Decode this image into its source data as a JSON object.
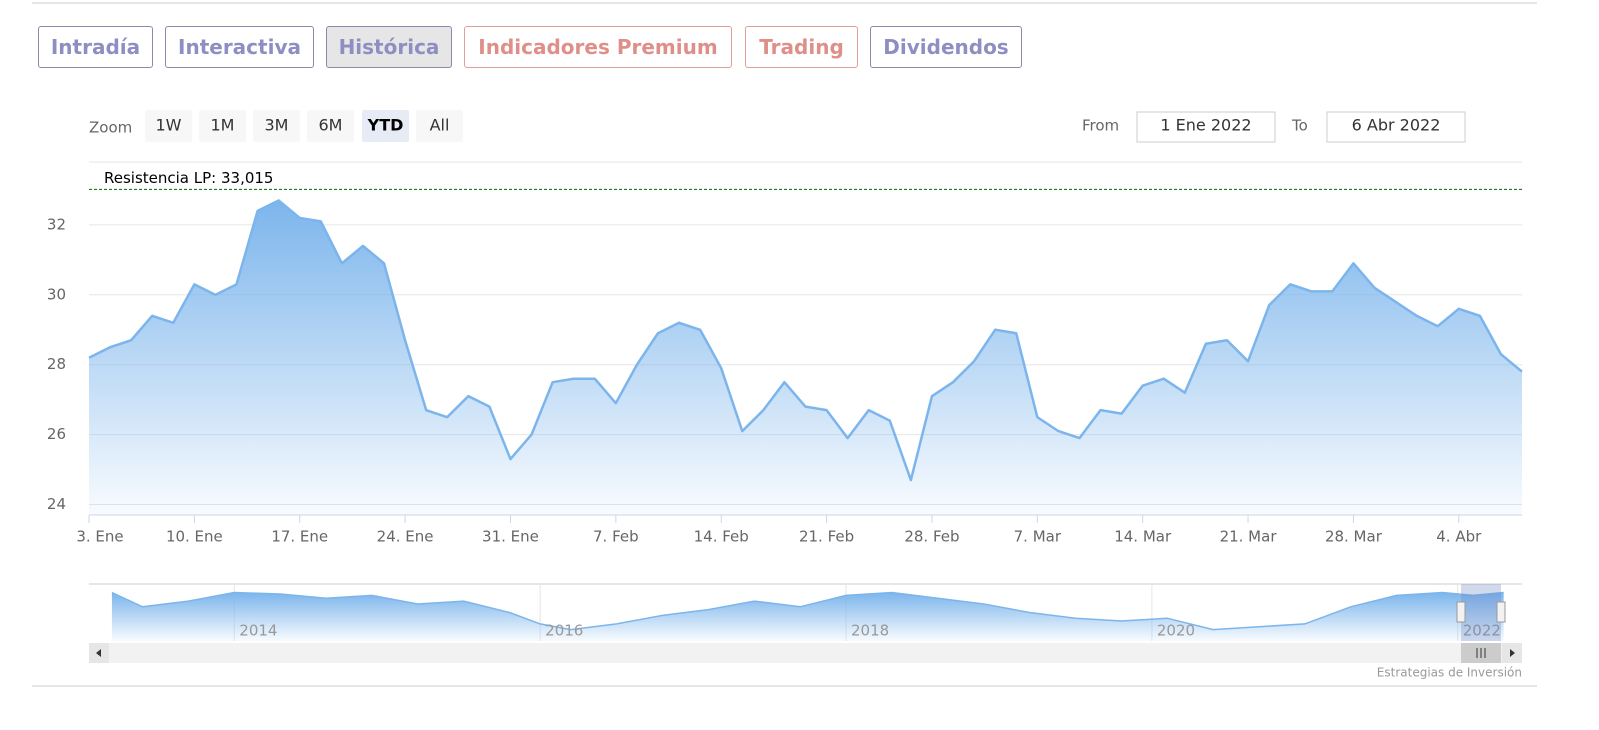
{
  "tabs": [
    "Intradía",
    "Interactiva",
    "Histórica",
    "Indicadores Premium",
    "Trading",
    "Dividendos"
  ],
  "zoom": {
    "label": "Zoom",
    "buttons": [
      "1W",
      "1M",
      "3M",
      "6M",
      "YTD",
      "All"
    ]
  },
  "range": {
    "from_label": "From",
    "from": "1 Ene 2022",
    "to_label": "To",
    "to": "6 Abr 2022"
  },
  "chart_data": {
    "type": "area",
    "categories": [
      "3. Ene",
      null,
      null,
      null,
      null,
      "10. Ene",
      null,
      null,
      null,
      null,
      "17. Ene",
      null,
      null,
      null,
      null,
      "24. Ene",
      null,
      null,
      null,
      null,
      "31. Ene",
      null,
      null,
      null,
      null,
      "7. Feb",
      null,
      null,
      null,
      null,
      "14. Feb",
      null,
      null,
      null,
      null,
      "21. Feb",
      null,
      null,
      null,
      null,
      "28. Feb",
      null,
      null,
      null,
      null,
      "7. Mar",
      null,
      null,
      null,
      null,
      "14. Mar",
      null,
      null,
      null,
      null,
      "21. Mar",
      null,
      null,
      null,
      null,
      "28. Mar",
      null,
      null,
      null,
      null,
      "4. Abr",
      null,
      null,
      null
    ],
    "series": [
      {
        "color": "#7cb5ec",
        "values": [
          28.2,
          28.5,
          28.7,
          29.4,
          29.2,
          30.3,
          30.0,
          30.3,
          32.4,
          32.7,
          32.2,
          32.1,
          30.9,
          31.4,
          30.9,
          28.7,
          26.7,
          26.5,
          27.1,
          26.8,
          25.3,
          26.0,
          27.5,
          27.6,
          27.6,
          26.9,
          28.0,
          28.9,
          29.2,
          29.0,
          27.9,
          26.1,
          26.7,
          27.5,
          26.8,
          26.7,
          25.9,
          26.7,
          26.4,
          24.7,
          27.1,
          27.5,
          28.1,
          29.0,
          28.9,
          26.5,
          26.1,
          25.9,
          26.7,
          26.6,
          27.4,
          27.6,
          27.2,
          28.6,
          28.7,
          28.1,
          29.7,
          30.3,
          30.1,
          30.1,
          30.9,
          30.2,
          29.8,
          29.4,
          29.1,
          29.6,
          29.4,
          28.3,
          27.8
        ]
      }
    ],
    "ylim": [
      23.7,
      33.8
    ],
    "yticks": [
      24,
      26,
      28,
      30,
      32
    ],
    "grid": true,
    "resistance": {
      "value": 33.015,
      "label": "Resistencia LP: 33,015",
      "color": "#006600"
    }
  },
  "navigator": {
    "x": [
      2013.2,
      2013.4,
      2013.7,
      2014.0,
      2014.3,
      2014.6,
      2014.9,
      2015.2,
      2015.5,
      2015.8,
      2016.0,
      2016.2,
      2016.5,
      2016.8,
      2017.1,
      2017.4,
      2017.7,
      2018.0,
      2018.3,
      2018.6,
      2018.9,
      2019.2,
      2019.5,
      2019.8,
      2020.1,
      2020.4,
      2020.7,
      2021.0,
      2021.3,
      2021.6,
      2021.9,
      2022.1,
      2022.3
    ],
    "values": [
      37,
      32,
      34,
      37,
      36.5,
      35,
      36,
      33,
      34,
      30,
      26,
      24,
      26,
      29,
      31,
      34,
      32,
      36,
      37,
      35,
      33,
      30,
      28,
      27,
      28,
      24,
      25,
      26,
      32,
      36,
      37,
      36,
      37
    ],
    "xlim": [
      2013.05,
      2022.42
    ],
    "ylim": [
      20,
      40
    ],
    "xticks": [
      2014,
      2016,
      2018,
      2020,
      2022
    ]
  },
  "credits": "Estrategias de Inversión"
}
